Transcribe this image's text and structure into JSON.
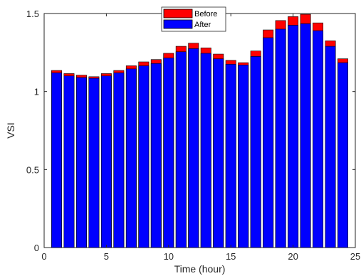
{
  "chart_data": {
    "type": "bar",
    "title": "",
    "xlabel": "Time (hour)",
    "ylabel": "VSI",
    "xlim": [
      0,
      25
    ],
    "ylim": [
      0,
      1.5
    ],
    "xticks": [
      "0",
      "5",
      "10",
      "15",
      "20",
      "25"
    ],
    "yticks": [
      "0",
      "0.5",
      "1",
      "1.5"
    ],
    "grid": false,
    "legend_position": "top-center",
    "x": [
      1,
      2,
      3,
      4,
      5,
      6,
      7,
      8,
      9,
      10,
      11,
      12,
      13,
      14,
      15,
      16,
      17,
      18,
      19,
      20,
      21,
      22,
      23,
      24
    ],
    "series": [
      {
        "name": "Before",
        "color": "#ff0000",
        "values": [
          1.135,
          1.115,
          1.105,
          1.095,
          1.115,
          1.135,
          1.165,
          1.19,
          1.205,
          1.245,
          1.29,
          1.31,
          1.28,
          1.24,
          1.2,
          1.185,
          1.26,
          1.395,
          1.455,
          1.48,
          1.495,
          1.44,
          1.325,
          1.21
        ]
      },
      {
        "name": "After",
        "color": "#0000ff",
        "values": [
          1.12,
          1.1,
          1.09,
          1.085,
          1.1,
          1.12,
          1.145,
          1.165,
          1.18,
          1.215,
          1.255,
          1.275,
          1.245,
          1.21,
          1.175,
          1.17,
          1.225,
          1.345,
          1.4,
          1.425,
          1.435,
          1.39,
          1.29,
          1.185
        ]
      }
    ]
  }
}
